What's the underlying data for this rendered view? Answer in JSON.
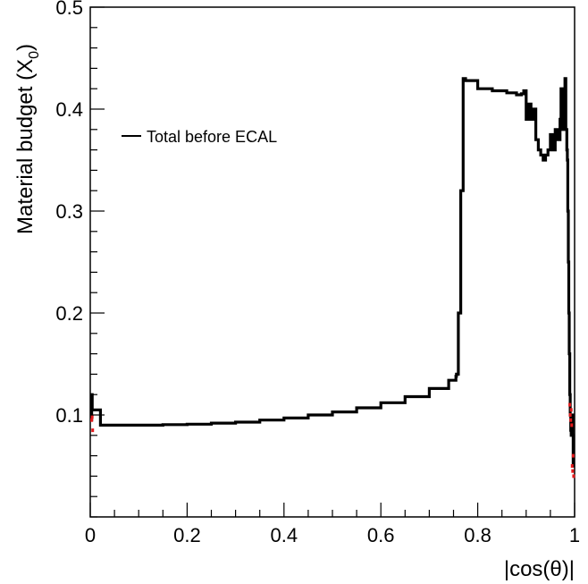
{
  "chart_data": {
    "type": "line",
    "xlabel": "|cos(θ)|",
    "ylabel_main": "Material budget (X",
    "ylabel_sub": "0",
    "ylabel_close": ")",
    "xlim": [
      0,
      1
    ],
    "ylim": [
      0,
      0.5
    ],
    "x_ticks": [
      0,
      0.2,
      0.4,
      0.6,
      0.8,
      1
    ],
    "x_tick_labels": [
      "0",
      "0.2",
      "0.4",
      "0.6",
      "0.8",
      "1"
    ],
    "y_ticks": [
      0.1,
      0.2,
      0.3,
      0.4,
      0.5
    ],
    "y_tick_labels": [
      "0.1",
      "0.2",
      "0.3",
      "0.4",
      "0.5"
    ],
    "grid": false,
    "legend_position": "top-left",
    "series": [
      {
        "name": "Total before ECAL",
        "color": "#000000",
        "x": [
          0.0,
          0.003,
          0.004,
          0.005,
          0.01,
          0.02,
          0.021,
          0.05,
          0.1,
          0.15,
          0.2,
          0.25,
          0.3,
          0.35,
          0.4,
          0.45,
          0.5,
          0.55,
          0.6,
          0.65,
          0.7,
          0.74,
          0.755,
          0.756,
          0.76,
          0.765,
          0.77,
          0.775,
          0.8,
          0.83,
          0.86,
          0.88,
          0.89,
          0.895,
          0.9,
          0.905,
          0.91,
          0.915,
          0.92,
          0.925,
          0.93,
          0.935,
          0.94,
          0.945,
          0.95,
          0.955,
          0.96,
          0.965,
          0.97,
          0.972,
          0.975,
          0.978,
          0.98,
          0.982,
          0.984,
          0.985,
          0.986,
          0.987,
          0.988,
          0.989,
          0.99,
          0.991,
          0.992,
          0.993,
          0.994,
          0.995,
          0.996,
          0.997,
          0.998
        ],
        "y": [
          0.095,
          0.12,
          0.105,
          0.105,
          0.105,
          0.105,
          0.09,
          0.09,
          0.09,
          0.0905,
          0.091,
          0.092,
          0.093,
          0.095,
          0.097,
          0.1,
          0.103,
          0.107,
          0.112,
          0.118,
          0.126,
          0.134,
          0.138,
          0.14,
          0.2,
          0.32,
          0.43,
          0.428,
          0.42,
          0.418,
          0.416,
          0.414,
          0.415,
          0.418,
          0.39,
          0.405,
          0.39,
          0.4,
          0.37,
          0.36,
          0.355,
          0.35,
          0.355,
          0.36,
          0.375,
          0.36,
          0.38,
          0.37,
          0.39,
          0.42,
          0.38,
          0.4,
          0.43,
          0.38,
          0.36,
          0.35,
          0.3,
          0.25,
          0.2,
          0.16,
          0.12,
          0.1,
          0.085,
          0.08,
          0.09,
          0.1,
          0.08,
          0.05,
          0.06
        ]
      },
      {
        "color": "#e31a1c",
        "x": [
          0.003,
          0.004,
          0.005,
          0.99,
          0.991,
          0.992,
          0.993,
          0.994,
          0.995,
          0.996,
          0.997,
          0.998
        ],
        "y": [
          0.095,
          0.098,
          0.085,
          0.11,
          0.1,
          0.095,
          0.105,
          0.09,
          0.05,
          0.045,
          0.06,
          0.04
        ]
      }
    ]
  }
}
